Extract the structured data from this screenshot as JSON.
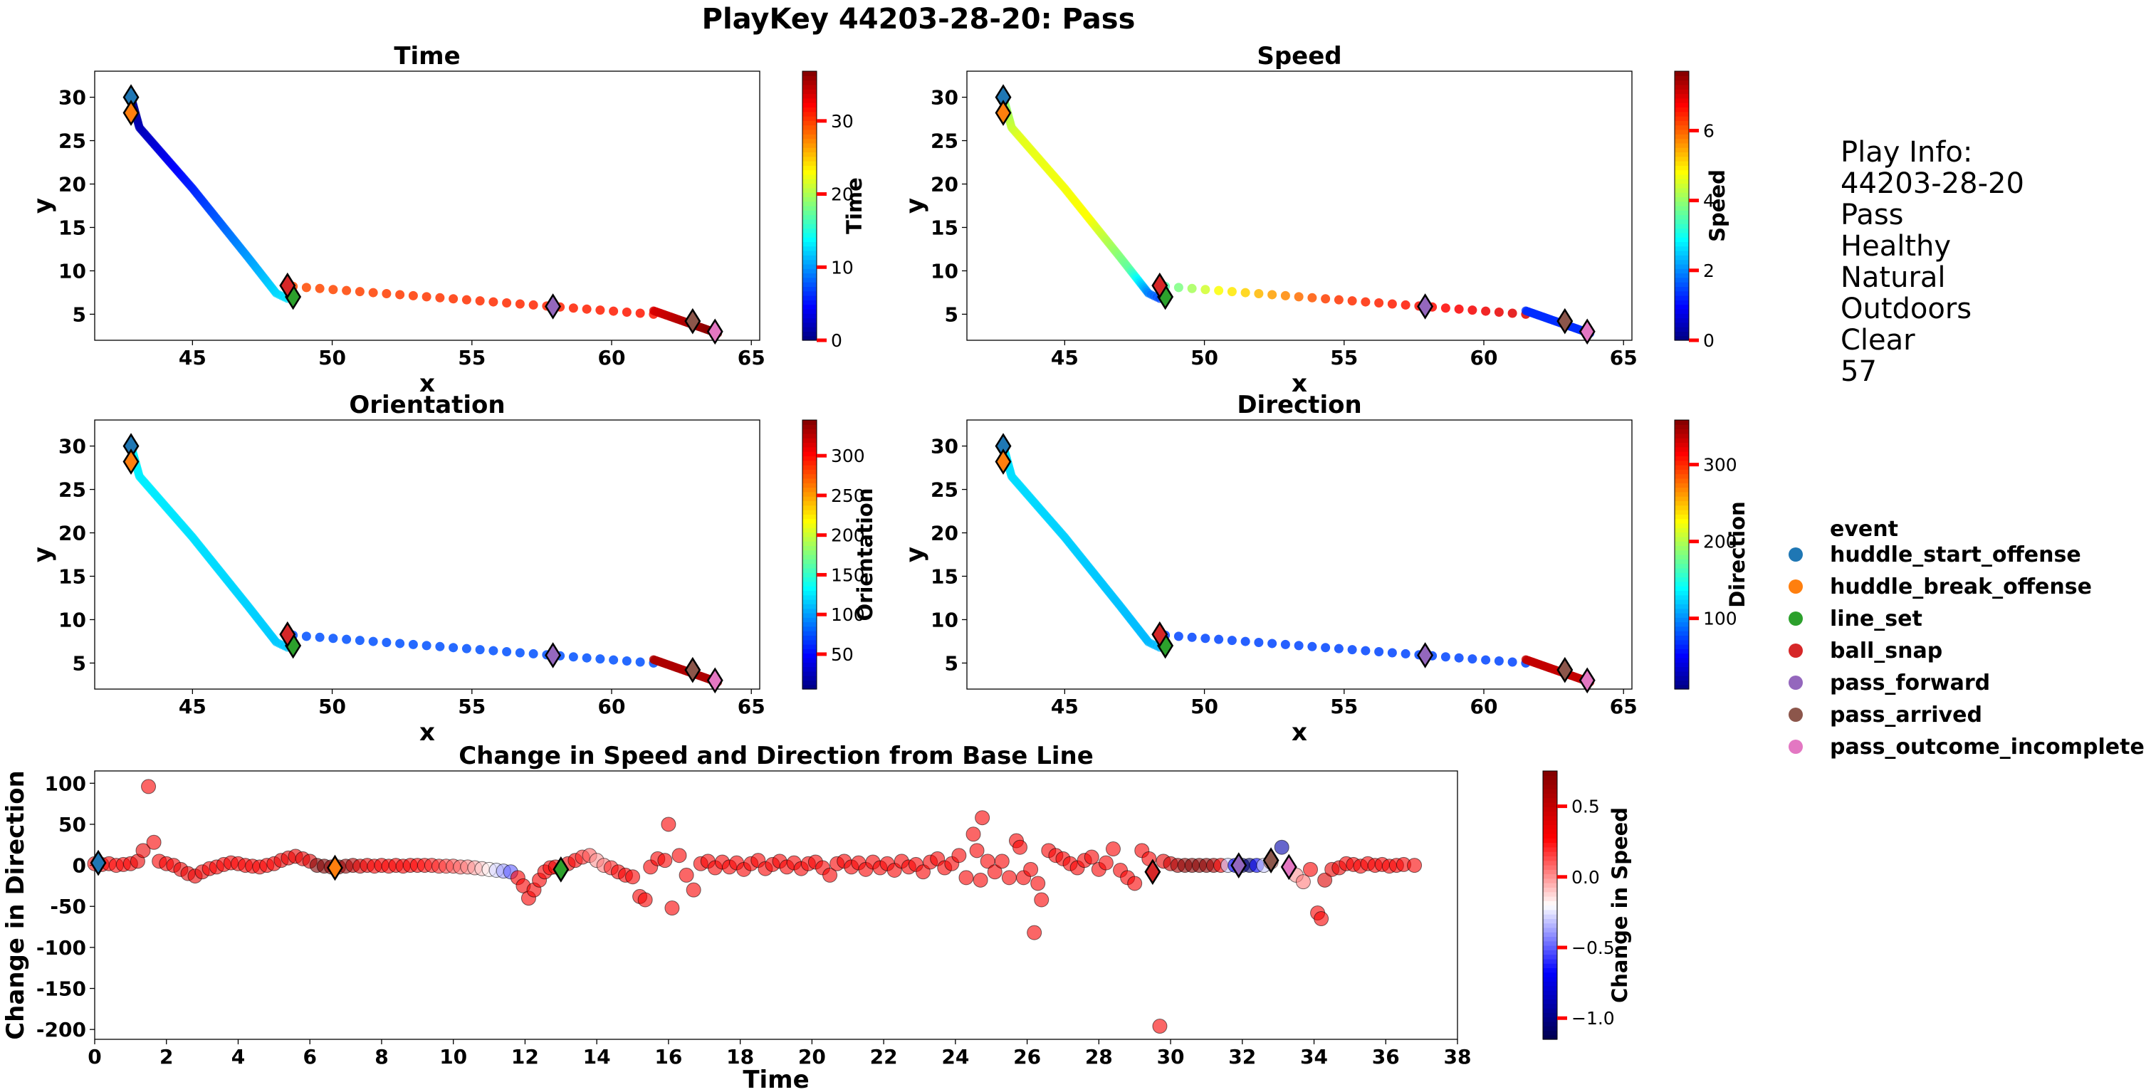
{
  "figure_title": "PlayKey 44203-28-20: Pass",
  "play_info": {
    "lines": [
      "Play Info:",
      "44203-28-20",
      "Pass",
      "Healthy",
      "Natural",
      "Outdoors",
      "Clear",
      "57"
    ]
  },
  "legend": {
    "title": "event",
    "items": [
      {
        "label": "huddle_start_offense",
        "color": "#1f77b4"
      },
      {
        "label": "huddle_break_offense",
        "color": "#ff7f0e"
      },
      {
        "label": "line_set",
        "color": "#2ca02c"
      },
      {
        "label": "ball_snap",
        "color": "#d62728"
      },
      {
        "label": "pass_forward",
        "color": "#9467bd"
      },
      {
        "label": "pass_arrived",
        "color": "#8c564b"
      },
      {
        "label": "pass_outcome_incomplete",
        "color": "#e377c2"
      }
    ]
  },
  "chart_data": [
    {
      "type": "scatter",
      "title": "Time",
      "xlabel": "x",
      "ylabel": "y",
      "xlim": [
        41.5,
        65.3
      ],
      "ylim": [
        2.0,
        33.0
      ],
      "xticks": [
        45,
        50,
        55,
        60,
        65
      ],
      "yticks": [
        5,
        10,
        15,
        20,
        25,
        30
      ],
      "colorbar": {
        "label": "Time",
        "colormap": "jet",
        "range": [
          0,
          36.8
        ],
        "ticks": [
          0,
          10,
          20,
          30
        ]
      },
      "color_quantity": "time",
      "grid": false
    },
    {
      "type": "scatter",
      "title": "Speed",
      "xlabel": "x",
      "ylabel": "y",
      "xlim": [
        41.5,
        65.3
      ],
      "ylim": [
        2.0,
        33.0
      ],
      "xticks": [
        45,
        50,
        55,
        60,
        65
      ],
      "yticks": [
        5,
        10,
        15,
        20,
        25,
        30
      ],
      "colorbar": {
        "label": "Speed",
        "colormap": "jet",
        "range": [
          0,
          7.7
        ],
        "ticks": [
          0,
          2,
          4,
          6
        ]
      },
      "color_quantity": "speed",
      "grid": false
    },
    {
      "type": "scatter",
      "title": "Orientation",
      "xlabel": "x",
      "ylabel": "y",
      "xlim": [
        41.5,
        65.3
      ],
      "ylim": [
        2.0,
        33.0
      ],
      "xticks": [
        45,
        50,
        55,
        60,
        65
      ],
      "yticks": [
        5,
        10,
        15,
        20,
        25,
        30
      ],
      "colorbar": {
        "label": "Orientation",
        "colormap": "jet",
        "range": [
          6,
          345
        ],
        "ticks": [
          50,
          100,
          150,
          200,
          250,
          300
        ]
      },
      "color_quantity": "orientation",
      "grid": false
    },
    {
      "type": "scatter",
      "title": "Direction",
      "xlabel": "x",
      "ylabel": "y",
      "xlim": [
        41.5,
        65.3
      ],
      "ylim": [
        2.0,
        33.0
      ],
      "xticks": [
        45,
        50,
        55,
        60,
        65
      ],
      "yticks": [
        5,
        10,
        15,
        20,
        25,
        30
      ],
      "colorbar": {
        "label": "Direction",
        "colormap": "jet",
        "range": [
          8,
          358
        ],
        "ticks": [
          100,
          200,
          300
        ]
      },
      "color_quantity": "direction",
      "grid": false
    },
    {
      "type": "scatter",
      "title": "Change in Speed and Direction from Base Line",
      "xlabel": "Time",
      "ylabel": "Change in Direction",
      "xlim": [
        0,
        38
      ],
      "ylim": [
        -212,
        115
      ],
      "xticks": [
        0,
        2,
        4,
        6,
        8,
        10,
        12,
        14,
        16,
        18,
        20,
        22,
        24,
        26,
        28,
        30,
        32,
        34,
        36,
        38
      ],
      "yticks": [
        100,
        50,
        0,
        -50,
        -100,
        -150,
        -200
      ],
      "colorbar": {
        "label": "Change in Speed",
        "colormap": "seismic",
        "range": [
          -1.15,
          0.75
        ],
        "ticks": [
          0.5,
          0.0,
          -0.5,
          -1.0
        ]
      },
      "grid": false
    }
  ],
  "trajectory": {
    "path_xy": [
      [
        42.8,
        30.0
      ],
      [
        43.1,
        26.5
      ],
      [
        45.0,
        19.5
      ],
      [
        47.0,
        11.5
      ],
      [
        48.0,
        7.4
      ],
      [
        48.4,
        6.8
      ]
    ],
    "path_time_range": [
      0,
      12.8
    ],
    "path_orientation_range": [
      130,
      115
    ],
    "path_direction_range": [
      130,
      115
    ],
    "path_speed_profile": [
      [
        0,
        3.8
      ],
      [
        0.2,
        4.6
      ],
      [
        0.6,
        4.8
      ],
      [
        0.85,
        3.6
      ],
      [
        1,
        1.5
      ]
    ],
    "dotted_xy": [
      [
        48.6,
        8.2
      ],
      [
        61.5,
        5.0
      ]
    ],
    "dotted_time_range": [
      29.5,
      31.5
    ],
    "dotted_orientation": 75,
    "dotted_direction": 75,
    "dotted_speed_profile": [
      [
        0,
        3.5
      ],
      [
        0.15,
        4.8
      ],
      [
        0.45,
        6.3
      ],
      [
        1,
        7.0
      ]
    ],
    "end_xy": [
      [
        61.5,
        5.4
      ],
      [
        63.8,
        2.8
      ]
    ],
    "end_time_range": [
      33.5,
      36.8
    ],
    "end_speed": 1.3,
    "end_orientation": 330,
    "end_direction": 335
  },
  "events": [
    {
      "name": "huddle_start_offense",
      "x": 42.8,
      "y": 30.0,
      "time": 0.1,
      "change_dir": 3
    },
    {
      "name": "huddle_break_offense",
      "x": 42.8,
      "y": 28.2,
      "time": 6.7,
      "change_dir": -3
    },
    {
      "name": "line_set",
      "x": 48.6,
      "y": 7.0,
      "time": 13.0,
      "change_dir": -5
    },
    {
      "name": "ball_snap",
      "x": 48.4,
      "y": 8.3,
      "time": 29.5,
      "change_dir": -8
    },
    {
      "name": "pass_forward",
      "x": 57.9,
      "y": 5.9,
      "time": 31.9,
      "change_dir": 0
    },
    {
      "name": "pass_arrived",
      "x": 62.9,
      "y": 4.2,
      "time": 32.8,
      "change_dir": 6
    },
    {
      "name": "pass_outcome_incomplete",
      "x": 63.7,
      "y": 3.0,
      "time": 33.3,
      "change_dir": -2
    }
  ],
  "change_series": {
    "base": [
      [
        0.0,
        2,
        0.25
      ],
      [
        0.2,
        1,
        0.25
      ],
      [
        0.4,
        2,
        0.3
      ],
      [
        0.6,
        0,
        0.25
      ],
      [
        0.8,
        1,
        0.3
      ],
      [
        1.0,
        2,
        0.3
      ],
      [
        1.2,
        5,
        0.35
      ],
      [
        1.35,
        18,
        0.35
      ],
      [
        1.5,
        96,
        0.3
      ],
      [
        1.65,
        28,
        0.3
      ],
      [
        1.8,
        5,
        0.3
      ],
      [
        2.0,
        2,
        0.3
      ],
      [
        2.2,
        0,
        0.3
      ],
      [
        2.4,
        -5,
        0.35
      ],
      [
        2.6,
        -10,
        0.35
      ],
      [
        2.8,
        -13,
        0.35
      ],
      [
        3.0,
        -8,
        0.35
      ],
      [
        3.2,
        -4,
        0.3
      ],
      [
        3.4,
        -2,
        0.3
      ],
      [
        3.6,
        1,
        0.3
      ],
      [
        3.8,
        3,
        0.3
      ],
      [
        4.0,
        2,
        0.3
      ],
      [
        4.2,
        0,
        0.3
      ],
      [
        4.4,
        -1,
        0.3
      ],
      [
        4.6,
        -2,
        0.3
      ],
      [
        4.8,
        0,
        0.3
      ],
      [
        5.0,
        2,
        0.3
      ],
      [
        5.2,
        6,
        0.35
      ],
      [
        5.4,
        9,
        0.35
      ],
      [
        5.6,
        11,
        0.35
      ],
      [
        5.8,
        8,
        0.35
      ],
      [
        6.0,
        5,
        0.4
      ],
      [
        6.2,
        0,
        0.75
      ],
      [
        6.4,
        -1,
        0.75
      ],
      [
        6.6,
        -2,
        0.7
      ],
      [
        6.8,
        -2,
        0.7
      ],
      [
        7.0,
        -1,
        0.65
      ],
      [
        7.2,
        0,
        0.55
      ],
      [
        7.4,
        -1,
        0.4
      ],
      [
        7.6,
        0,
        0.35
      ],
      [
        7.8,
        -1,
        0.3
      ],
      [
        8.0,
        0,
        0.3
      ],
      [
        8.2,
        -1,
        0.3
      ],
      [
        8.4,
        0,
        0.3
      ],
      [
        8.6,
        -1,
        0.3
      ],
      [
        8.8,
        0,
        0.3
      ],
      [
        9.0,
        0,
        0.28
      ],
      [
        9.2,
        0,
        0.25
      ],
      [
        9.4,
        0,
        0.22
      ],
      [
        9.6,
        -1,
        0.2
      ],
      [
        9.8,
        -1,
        0.15
      ],
      [
        10.0,
        -1,
        0.12
      ],
      [
        10.2,
        -2,
        0.08
      ],
      [
        10.4,
        -2,
        0.03
      ],
      [
        10.6,
        -3,
        -0.03
      ],
      [
        10.8,
        -4,
        -0.1
      ],
      [
        11.0,
        -5,
        -0.18
      ],
      [
        11.2,
        -6,
        -0.28
      ],
      [
        11.4,
        -7,
        -0.38
      ],
      [
        11.6,
        -8,
        -0.5
      ],
      [
        11.8,
        -15,
        0.3
      ],
      [
        11.95,
        -25,
        0.3
      ],
      [
        12.1,
        -40,
        0.3
      ],
      [
        12.25,
        -30,
        0.3
      ],
      [
        12.4,
        -18,
        0.3
      ],
      [
        12.55,
        -8,
        0.3
      ],
      [
        12.7,
        -3,
        0.3
      ],
      [
        12.85,
        -2,
        0.35
      ],
      [
        13.2,
        2,
        0.35
      ],
      [
        13.4,
        6,
        0.3
      ],
      [
        13.6,
        10,
        0.2
      ],
      [
        13.8,
        12,
        0.1
      ],
      [
        14.0,
        6,
        0.0
      ],
      [
        14.2,
        0,
        0.05
      ],
      [
        14.4,
        -3,
        0.2
      ],
      [
        14.6,
        -8,
        0.3
      ],
      [
        14.8,
        -12,
        0.3
      ],
      [
        15.0,
        -14,
        0.3
      ],
      [
        15.2,
        -38,
        0.3
      ],
      [
        15.35,
        -42,
        0.3
      ],
      [
        15.5,
        -2,
        0.3
      ],
      [
        15.7,
        8,
        0.3
      ],
      [
        15.9,
        6,
        0.3
      ],
      [
        16.0,
        50,
        0.3
      ],
      [
        16.1,
        -52,
        0.3
      ],
      [
        16.3,
        12,
        0.3
      ],
      [
        16.5,
        -12,
        0.3
      ],
      [
        16.7,
        -30,
        0.3
      ],
      [
        16.9,
        2,
        0.3
      ],
      [
        17.1,
        5,
        0.3
      ],
      [
        17.3,
        -3,
        0.3
      ],
      [
        17.5,
        4,
        0.3
      ],
      [
        17.7,
        -2,
        0.3
      ],
      [
        17.9,
        3,
        0.3
      ],
      [
        18.1,
        -5,
        0.3
      ],
      [
        18.3,
        2,
        0.3
      ],
      [
        18.5,
        6,
        0.3
      ],
      [
        18.7,
        -4,
        0.3
      ],
      [
        18.9,
        1,
        0.3
      ],
      [
        19.1,
        5,
        0.3
      ],
      [
        19.3,
        -2,
        0.3
      ],
      [
        19.5,
        3,
        0.3
      ],
      [
        19.7,
        -4,
        0.3
      ],
      [
        19.9,
        2,
        0.3
      ],
      [
        20.1,
        4,
        0.3
      ],
      [
        20.3,
        -3,
        0.3
      ],
      [
        20.5,
        -12,
        0.3
      ],
      [
        20.7,
        2,
        0.3
      ],
      [
        20.9,
        5,
        0.3
      ],
      [
        21.1,
        -2,
        0.3
      ],
      [
        21.3,
        3,
        0.3
      ],
      [
        21.5,
        -5,
        0.3
      ],
      [
        21.7,
        4,
        0.3
      ],
      [
        21.9,
        -3,
        0.3
      ],
      [
        22.1,
        2,
        0.3
      ],
      [
        22.3,
        -6,
        0.3
      ],
      [
        22.5,
        5,
        0.3
      ],
      [
        22.7,
        -2,
        0.3
      ],
      [
        22.9,
        1,
        0.3
      ],
      [
        23.1,
        -8,
        0.3
      ],
      [
        23.3,
        4,
        0.3
      ],
      [
        23.5,
        8,
        0.3
      ],
      [
        23.7,
        -3,
        0.3
      ],
      [
        23.9,
        2,
        0.3
      ],
      [
        24.1,
        12,
        0.3
      ],
      [
        24.3,
        -15,
        0.3
      ],
      [
        24.5,
        38,
        0.3
      ],
      [
        24.6,
        18,
        0.3
      ],
      [
        24.7,
        -18,
        0.3
      ],
      [
        24.75,
        58,
        0.3
      ],
      [
        24.9,
        5,
        0.3
      ],
      [
        25.1,
        -8,
        0.3
      ],
      [
        25.3,
        5,
        0.3
      ],
      [
        25.5,
        -15,
        0.3
      ],
      [
        25.7,
        30,
        0.3
      ],
      [
        25.8,
        22,
        0.3
      ],
      [
        25.9,
        -15,
        0.3
      ],
      [
        26.1,
        -5,
        0.3
      ],
      [
        26.2,
        -82,
        0.3
      ],
      [
        26.3,
        -22,
        0.3
      ],
      [
        26.4,
        -42,
        0.3
      ],
      [
        26.6,
        18,
        0.3
      ],
      [
        26.8,
        12,
        0.3
      ],
      [
        27.0,
        8,
        0.3
      ],
      [
        27.2,
        2,
        0.3
      ],
      [
        27.4,
        -3,
        0.3
      ],
      [
        27.6,
        6,
        0.3
      ],
      [
        27.8,
        10,
        0.3
      ],
      [
        28.0,
        -5,
        0.3
      ],
      [
        28.2,
        3,
        0.3
      ],
      [
        28.4,
        20,
        0.3
      ],
      [
        28.6,
        -6,
        0.3
      ],
      [
        28.8,
        -15,
        0.3
      ],
      [
        29.0,
        -22,
        0.3
      ],
      [
        29.2,
        18,
        0.3
      ],
      [
        29.4,
        8,
        0.3
      ],
      [
        29.7,
        -196,
        0.3
      ],
      [
        29.8,
        5,
        0.35
      ],
      [
        30.0,
        2,
        0.45
      ],
      [
        30.2,
        0,
        0.6
      ],
      [
        30.4,
        0,
        0.7
      ],
      [
        30.6,
        0,
        0.72
      ],
      [
        30.8,
        0,
        0.72
      ],
      [
        31.0,
        0,
        0.7
      ],
      [
        31.2,
        0,
        0.62
      ],
      [
        31.4,
        0,
        0.3
      ],
      [
        31.6,
        0,
        -0.3
      ],
      [
        31.8,
        0,
        -0.7
      ],
      [
        32.0,
        0,
        -1.0
      ],
      [
        32.2,
        0,
        -1.05
      ],
      [
        32.4,
        0,
        -0.7
      ],
      [
        32.6,
        0,
        -0.3
      ],
      [
        32.8,
        4,
        0.0
      ],
      [
        33.1,
        22,
        -0.9
      ],
      [
        33.5,
        -12,
        0.0
      ],
      [
        33.7,
        -20,
        0.05
      ],
      [
        33.9,
        -5,
        0.3
      ],
      [
        34.1,
        -58,
        0.3
      ],
      [
        34.2,
        -65,
        0.3
      ],
      [
        34.3,
        -18,
        0.4
      ],
      [
        34.5,
        -5,
        0.35
      ],
      [
        34.7,
        -3,
        0.35
      ],
      [
        34.9,
        2,
        0.3
      ],
      [
        35.1,
        1,
        0.3
      ],
      [
        35.3,
        -1,
        0.3
      ],
      [
        35.5,
        2,
        0.3
      ],
      [
        35.7,
        0,
        0.3
      ],
      [
        35.9,
        1,
        0.3
      ],
      [
        36.1,
        -1,
        0.3
      ],
      [
        36.3,
        0,
        0.3
      ],
      [
        36.5,
        1,
        0.3
      ],
      [
        36.8,
        0,
        0.3
      ]
    ]
  }
}
